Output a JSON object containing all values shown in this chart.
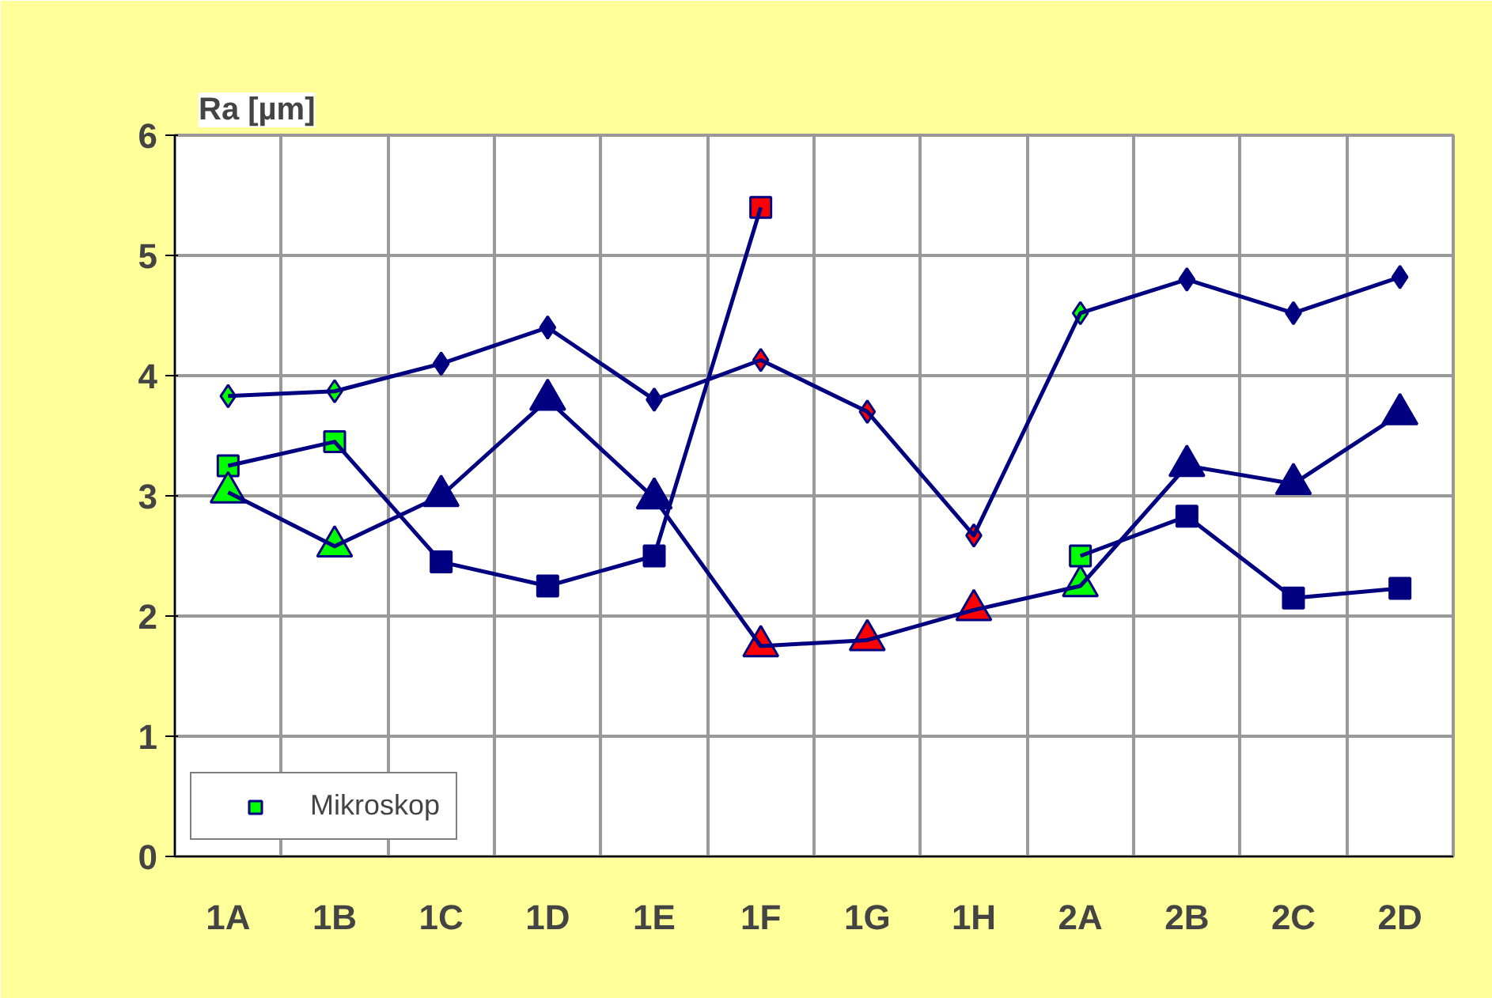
{
  "chart_data": {
    "type": "line",
    "title": "Ra [µm]",
    "categories": [
      "1A",
      "1B",
      "1C",
      "1D",
      "1E",
      "1F",
      "1G",
      "1H",
      "2A",
      "2B",
      "2C",
      "2D"
    ],
    "ylim": [
      0,
      6
    ],
    "yticks": [
      0,
      1,
      2,
      3,
      4,
      5,
      6
    ],
    "grid": true,
    "legend": "bottom left",
    "line_style": "solid",
    "series": [
      {
        "name": "Mikroskop",
        "color": "#000080",
        "marker": "square",
        "values": [
          3.25,
          3.45,
          2.45,
          2.25,
          2.5,
          5.4,
          null,
          null,
          2.5,
          2.83,
          2.15,
          2.23
        ],
        "colors": [
          "#00ff00",
          "#00ff00",
          "#000080",
          "#000080",
          "#000080",
          "#ff0000",
          null,
          null,
          "#00ff00",
          "#000080",
          "#000080",
          "#000080"
        ]
      },
      {
        "color": "#000080",
        "marker": "diamond",
        "values": [
          3.83,
          3.87,
          4.1,
          4.4,
          3.8,
          4.13,
          3.7,
          2.67,
          4.52,
          4.8,
          4.52,
          4.82
        ],
        "colors": [
          "#00ff00",
          "#00ff00",
          "#000080",
          "#000080",
          "#000080",
          "#ff0000",
          "#ff0000",
          "#ff0000",
          "#00ff00",
          "#000080",
          "#000080",
          "#000080"
        ]
      },
      {
        "color": "#000080",
        "marker": "triangle",
        "values": [
          3.03,
          2.58,
          3.0,
          3.8,
          2.98,
          1.75,
          1.8,
          2.05,
          2.25,
          3.25,
          3.1,
          3.68
        ],
        "colors": [
          "#00ff00",
          "#00ff00",
          "#000080",
          "#000080",
          "#000080",
          "#ff0000",
          "#ff0000",
          "#ff0000",
          "#00ff00",
          "#000080",
          "#000080",
          "#000080"
        ]
      }
    ]
  }
}
